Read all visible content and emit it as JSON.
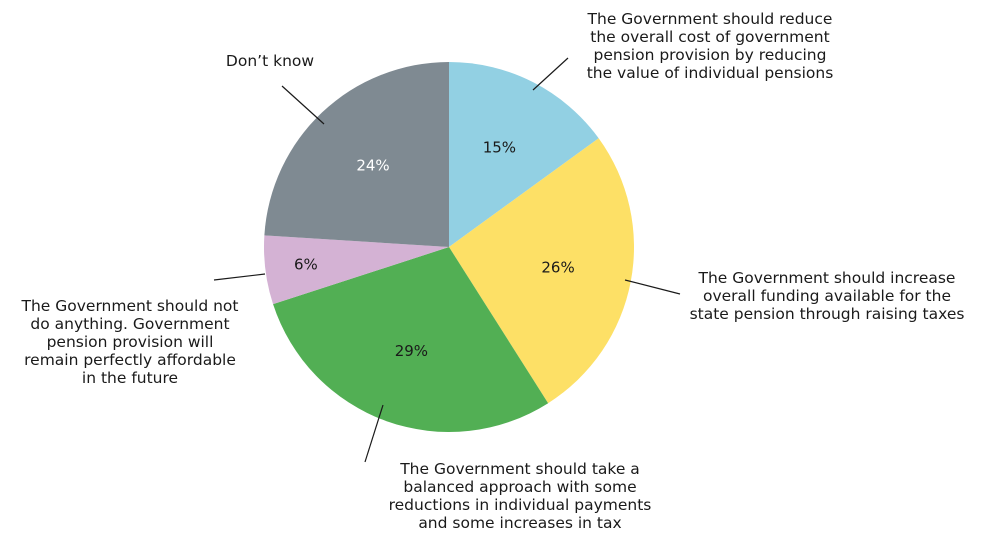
{
  "chart_data": {
    "type": "pie",
    "title": "",
    "slices": [
      {
        "label_lines": [
          "The Government should reduce",
          "the overall cost of government",
          "pension provision by reducing",
          "the value of individual pensions"
        ],
        "value": 15,
        "value_label": "15%",
        "color": "#92d0e3",
        "value_label_color": "#1a1a1a"
      },
      {
        "label_lines": [
          "The Government should increase",
          "overall funding available for the",
          "state pension through raising taxes"
        ],
        "value": 26,
        "value_label": "26%",
        "color": "#fde066",
        "value_label_color": "#1a1a1a"
      },
      {
        "label_lines": [
          "The Government should take a",
          "balanced approach with some",
          "reductions in individual payments",
          "and some increases in tax"
        ],
        "value": 29,
        "value_label": "29%",
        "color": "#52af54",
        "value_label_color": "#1a1a1a"
      },
      {
        "label_lines": [
          "The Government should not",
          "do anything. Government",
          "pension provision will",
          "remain perfectly affordable",
          "in the future"
        ],
        "value": 6,
        "value_label": "6%",
        "color": "#d4b2d4",
        "value_label_color": "#1a1a1a"
      },
      {
        "label_lines": [
          "Don’t know"
        ],
        "value": 24,
        "value_label": "24%",
        "color": "#7f8a92",
        "value_label_color": "#ffffff"
      }
    ],
    "start_angle": "12 o'clock",
    "direction": "clockwise",
    "legend": "none (callout labels)"
  }
}
